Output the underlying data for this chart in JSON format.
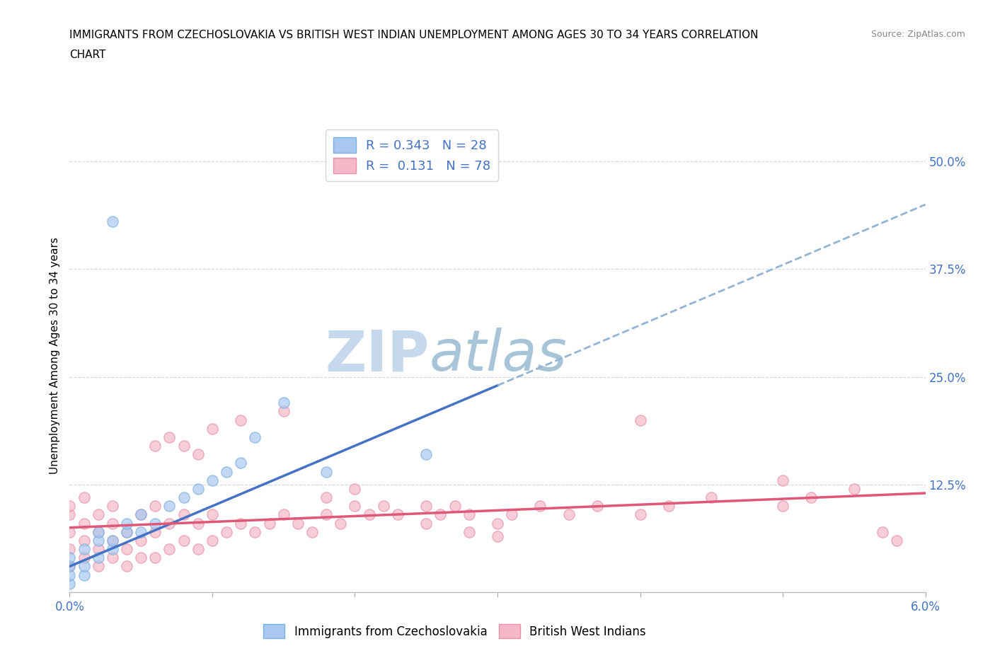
{
  "title_line1": "IMMIGRANTS FROM CZECHOSLOVAKIA VS BRITISH WEST INDIAN UNEMPLOYMENT AMONG AGES 30 TO 34 YEARS CORRELATION",
  "title_line2": "CHART",
  "source": "Source: ZipAtlas.com",
  "ylabel": "Unemployment Among Ages 30 to 34 years",
  "xlim": [
    0.0,
    0.06
  ],
  "ylim": [
    0.0,
    0.55
  ],
  "yticks": [
    0.0,
    0.125,
    0.25,
    0.375,
    0.5
  ],
  "ytick_labels": [
    "",
    "12.5%",
    "25.0%",
    "37.5%",
    "50.0%"
  ],
  "xticks": [
    0.0,
    0.01,
    0.02,
    0.03,
    0.04,
    0.05,
    0.06
  ],
  "xtick_labels": [
    "0.0%",
    "",
    "",
    "",
    "",
    "",
    "6.0%"
  ],
  "legend1_label": "R = 0.343   N = 28",
  "legend2_label": "R =  0.131   N = 78",
  "watermark_zip": "ZIP",
  "watermark_atlas": "atlas",
  "watermark_color_zip": "#c5d8ec",
  "watermark_color_atlas": "#a8c4d8",
  "axis_color": "#4472c4",
  "grid_color": "#c8d8e8",
  "czecho_fill": "#a8c8f0",
  "czecho_edge": "#7ab0e0",
  "bwi_fill": "#f4b8c8",
  "bwi_edge": "#e890a8",
  "czecho_trend_color": "#4472c4",
  "czecho_trend_dashed_color": "#94b4d4",
  "bwi_trend_color": "#e05878",
  "czecho_x": [
    0.0,
    0.0,
    0.0,
    0.0,
    0.001,
    0.001,
    0.001,
    0.002,
    0.002,
    0.002,
    0.003,
    0.003,
    0.004,
    0.004,
    0.005,
    0.005,
    0.006,
    0.007,
    0.008,
    0.009,
    0.01,
    0.011,
    0.012,
    0.013,
    0.015,
    0.003,
    0.025,
    0.018
  ],
  "czecho_y": [
    0.01,
    0.02,
    0.03,
    0.04,
    0.02,
    0.03,
    0.05,
    0.04,
    0.06,
    0.07,
    0.05,
    0.06,
    0.07,
    0.08,
    0.07,
    0.09,
    0.08,
    0.1,
    0.11,
    0.12,
    0.13,
    0.14,
    0.15,
    0.18,
    0.22,
    0.43,
    0.16,
    0.14
  ],
  "bwi_x": [
    0.0,
    0.0,
    0.0,
    0.0,
    0.0,
    0.001,
    0.001,
    0.001,
    0.001,
    0.002,
    0.002,
    0.002,
    0.002,
    0.003,
    0.003,
    0.003,
    0.003,
    0.004,
    0.004,
    0.004,
    0.005,
    0.005,
    0.005,
    0.006,
    0.006,
    0.006,
    0.007,
    0.007,
    0.008,
    0.008,
    0.009,
    0.009,
    0.01,
    0.01,
    0.011,
    0.012,
    0.013,
    0.014,
    0.015,
    0.016,
    0.017,
    0.018,
    0.019,
    0.02,
    0.021,
    0.022,
    0.023,
    0.025,
    0.026,
    0.027,
    0.028,
    0.03,
    0.031,
    0.033,
    0.035,
    0.037,
    0.04,
    0.042,
    0.045,
    0.05,
    0.052,
    0.055,
    0.057,
    0.006,
    0.007,
    0.008,
    0.009,
    0.01,
    0.012,
    0.015,
    0.018,
    0.02,
    0.025,
    0.028,
    0.03,
    0.04,
    0.05,
    0.058
  ],
  "bwi_y": [
    0.03,
    0.05,
    0.07,
    0.09,
    0.1,
    0.04,
    0.06,
    0.08,
    0.11,
    0.03,
    0.05,
    0.07,
    0.09,
    0.04,
    0.06,
    0.08,
    0.1,
    0.03,
    0.05,
    0.07,
    0.04,
    0.06,
    0.09,
    0.04,
    0.07,
    0.1,
    0.05,
    0.08,
    0.06,
    0.09,
    0.05,
    0.08,
    0.06,
    0.09,
    0.07,
    0.08,
    0.07,
    0.08,
    0.09,
    0.08,
    0.07,
    0.09,
    0.08,
    0.1,
    0.09,
    0.1,
    0.09,
    0.08,
    0.09,
    0.1,
    0.09,
    0.08,
    0.09,
    0.1,
    0.09,
    0.1,
    0.09,
    0.1,
    0.11,
    0.1,
    0.11,
    0.12,
    0.07,
    0.17,
    0.18,
    0.17,
    0.16,
    0.19,
    0.2,
    0.21,
    0.11,
    0.12,
    0.1,
    0.07,
    0.065,
    0.2,
    0.13,
    0.06
  ]
}
